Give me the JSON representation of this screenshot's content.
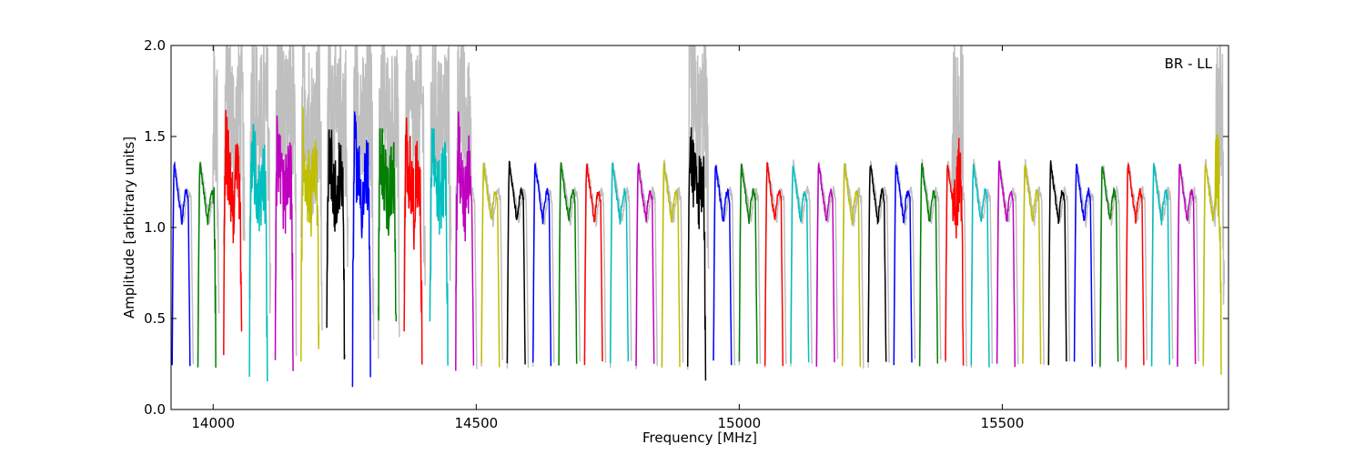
{
  "chart_data": {
    "type": "line",
    "title": "",
    "xlabel": "Frequency [MHz]",
    "ylabel": "Amplitude [arbitrary units]",
    "xlim": [
      13920,
      15930
    ],
    "ylim": [
      0.0,
      2.0
    ],
    "x_ticks": [
      14000,
      14500,
      15000,
      15500
    ],
    "y_ticks": [
      0.0,
      0.5,
      1.0,
      1.5,
      2.0
    ],
    "x_tick_labels": [
      "14000",
      "14500",
      "15000",
      "15500"
    ],
    "y_tick_labels": [
      "0.0",
      "0.5",
      "1.0",
      "1.5",
      "2.0"
    ],
    "annotation": "BR - LL",
    "grid": false,
    "background_series_color": "#bfbfbf",
    "series_colors": [
      "#0000ff",
      "#008000",
      "#ff0000",
      "#00bfbf",
      "#bf00bf",
      "#bfbf00",
      "#000000"
    ],
    "channel_shape": {
      "description": "bandpass channels, each ~28 MHz wide, rising from ~0.25 to a peak near 1.35 at the low-frequency edge, dipping to ~1.05 and ending with a small bump near 1.2",
      "edge_low": 0.25,
      "peak": 1.35,
      "mid_min": 1.03,
      "end_bump": 1.2
    },
    "channels_start_mhz": [
      13922,
      13971,
      14020,
      14069,
      14118,
      14167,
      14216,
      14265,
      14314,
      14363,
      14412,
      14461,
      14510,
      14559,
      14608,
      14657,
      14706,
      14755,
      14804,
      14853,
      14902,
      14951,
      15000,
      15049,
      15098,
      15147,
      15196,
      15245,
      15294,
      15343,
      15392,
      15441,
      15490,
      15539,
      15588,
      15637,
      15686,
      15735,
      15784,
      15833,
      15882
    ],
    "noisy_regions": [
      {
        "from": 14000,
        "to": 14490,
        "max": 2.0
      },
      {
        "from": 14905,
        "to": 14945,
        "max": 2.0
      },
      {
        "from": 15405,
        "to": 15425,
        "max": 2.0
      },
      {
        "from": 15905,
        "to": 15925,
        "max": 2.0
      }
    ]
  }
}
